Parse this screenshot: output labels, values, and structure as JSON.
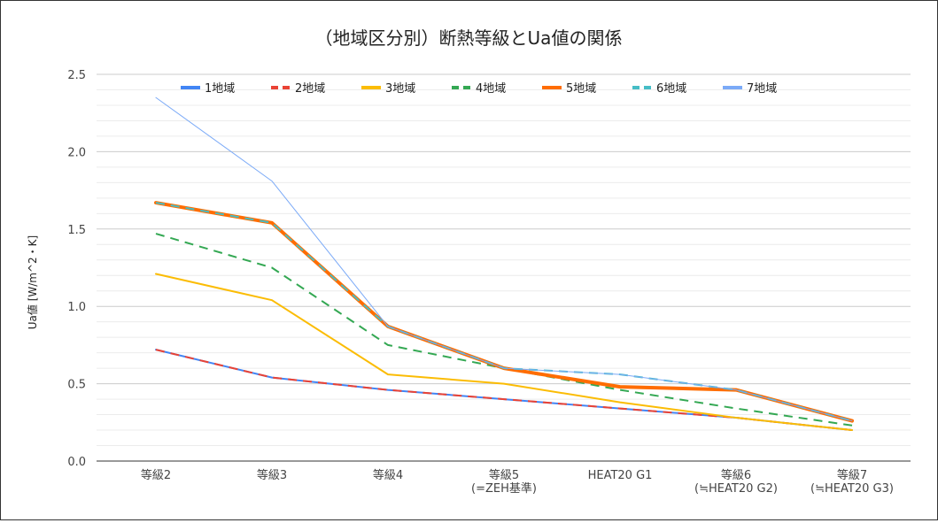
{
  "chart_data": {
    "type": "line",
    "title": "（地域区分別）断熱等級とUa値の関係",
    "xlabel": "",
    "ylabel": "Ua値 [W/m^2・K]",
    "ylim": [
      0,
      2.5
    ],
    "yticks": [
      "0.0",
      "0.5",
      "1.0",
      "1.5",
      "2.0",
      "2.5"
    ],
    "grid": true,
    "legend_position": "top",
    "categories": [
      [
        "等級2"
      ],
      [
        "等級3"
      ],
      [
        "等級4"
      ],
      [
        "等級5",
        "(=ZEH基準)"
      ],
      [
        "HEAT20 G1"
      ],
      [
        "等級6",
        "(≒HEAT20 G2)"
      ],
      [
        "等級7",
        "(≒HEAT20 G3)"
      ]
    ],
    "series": [
      {
        "name": "1地域",
        "color": "#4285f4",
        "dash": "solid",
        "width": 2,
        "values": [
          0.72,
          0.54,
          0.46,
          0.4,
          0.34,
          0.28,
          0.2
        ]
      },
      {
        "name": "2地域",
        "color": "#ea4335",
        "dash": "dashed",
        "width": 2,
        "values": [
          0.72,
          0.54,
          0.46,
          0.4,
          0.34,
          0.28,
          0.2
        ]
      },
      {
        "name": "3地域",
        "color": "#fbbc04",
        "dash": "solid",
        "width": 2,
        "values": [
          1.21,
          1.04,
          0.56,
          0.5,
          0.38,
          0.28,
          0.2
        ]
      },
      {
        "name": "4地域",
        "color": "#34a853",
        "dash": "dashed",
        "width": 2,
        "values": [
          1.47,
          1.25,
          0.75,
          0.6,
          0.46,
          0.34,
          0.23
        ]
      },
      {
        "name": "5地域",
        "color": "#ff6d01",
        "dash": "solid",
        "width": 4,
        "values": [
          1.67,
          1.54,
          0.87,
          0.6,
          0.48,
          0.46,
          0.26
        ]
      },
      {
        "name": "6地域",
        "color": "#46bdc6",
        "dash": "dashed",
        "width": 2,
        "values": [
          1.67,
          1.54,
          0.87,
          0.6,
          0.56,
          0.46,
          0.26
        ]
      },
      {
        "name": "7地域",
        "color": "#7baaf7",
        "dash": "solid",
        "width": 1,
        "values": [
          2.35,
          1.81,
          0.87,
          0.6,
          0.56,
          0.46,
          0.26
        ]
      }
    ]
  }
}
